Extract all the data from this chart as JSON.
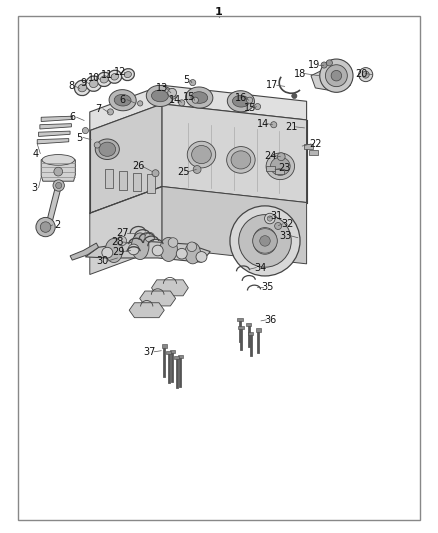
{
  "bg_color": "#ffffff",
  "border_color": "#777777",
  "line_color": "#444444",
  "text_color": "#111111",
  "fig_width": 4.38,
  "fig_height": 5.33,
  "dpi": 100,
  "font_size": 7.0,
  "title": "1"
}
